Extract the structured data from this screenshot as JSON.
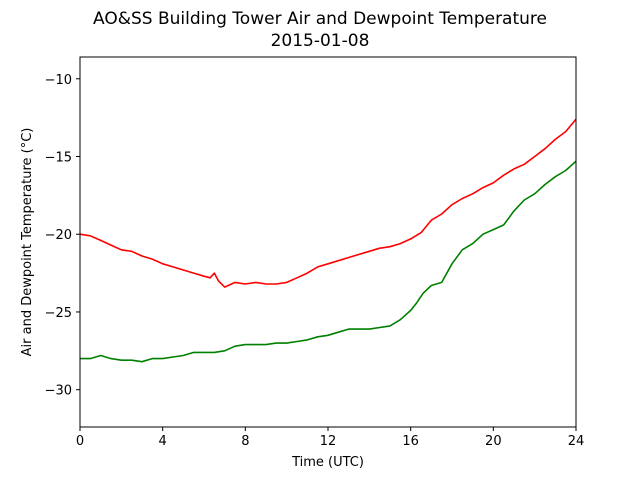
{
  "chart_data": {
    "type": "line",
    "title": "AO&SS Building Tower Air and Dewpoint Temperature",
    "subtitle": "2015-01-08",
    "xlabel": "Time (UTC)",
    "ylabel": "Air and Dewpoint Temperature (°C)",
    "xlim": [
      0,
      24
    ],
    "ylim": [
      -32.4,
      -8.6
    ],
    "xticks": [
      0,
      4,
      8,
      12,
      16,
      20,
      24
    ],
    "yticks": [
      -30,
      -25,
      -20,
      -15,
      -10
    ],
    "ytick_labels": [
      "−30",
      "−25",
      "−20",
      "−15",
      "−10"
    ],
    "grid": false,
    "series": [
      {
        "color": "#ff0000",
        "x": [
          0,
          0.5,
          1,
          1.5,
          2,
          2.5,
          3,
          3.5,
          4,
          4.5,
          5,
          5.5,
          6,
          6.3,
          6.5,
          6.7,
          7,
          7.5,
          8,
          8.5,
          9,
          9.5,
          10,
          10.5,
          11,
          11.5,
          12,
          12.5,
          13,
          13.5,
          14,
          14.5,
          15,
          15.5,
          16,
          16.5,
          17,
          17.5,
          18,
          18.5,
          19,
          19.5,
          20,
          20.5,
          21,
          21.5,
          22,
          22.5,
          23,
          23.5,
          24
        ],
        "y": [
          -20.0,
          -20.1,
          -20.4,
          -20.7,
          -21.0,
          -21.1,
          -21.4,
          -21.6,
          -21.9,
          -22.1,
          -22.3,
          -22.5,
          -22.7,
          -22.8,
          -22.5,
          -23.0,
          -23.4,
          -23.1,
          -23.2,
          -23.1,
          -23.2,
          -23.2,
          -23.1,
          -22.8,
          -22.5,
          -22.1,
          -21.9,
          -21.7,
          -21.5,
          -21.3,
          -21.1,
          -20.9,
          -20.8,
          -20.6,
          -20.3,
          -19.9,
          -19.1,
          -18.7,
          -18.1,
          -17.7,
          -17.4,
          -17.0,
          -16.7,
          -16.2,
          -15.8,
          -15.5,
          -15.0,
          -14.5,
          -13.9,
          -13.4,
          -12.6
        ]
      },
      {
        "color": "#008000",
        "x": [
          0,
          0.5,
          1,
          1.5,
          2,
          2.5,
          3,
          3.5,
          4,
          4.5,
          5,
          5.5,
          6,
          6.5,
          7,
          7.5,
          8,
          8.5,
          9,
          9.5,
          10,
          10.5,
          11,
          11.5,
          12,
          12.5,
          13,
          13.5,
          14,
          14.5,
          15,
          15.5,
          16,
          16.3,
          16.6,
          17,
          17.5,
          18,
          18.5,
          19,
          19.5,
          20,
          20.5,
          21,
          21.5,
          22,
          22.5,
          23,
          23.5,
          24
        ],
        "y": [
          -28.0,
          -28.0,
          -27.8,
          -28.0,
          -28.1,
          -28.1,
          -28.2,
          -28.0,
          -28.0,
          -27.9,
          -27.8,
          -27.6,
          -27.6,
          -27.6,
          -27.5,
          -27.2,
          -27.1,
          -27.1,
          -27.1,
          -27.0,
          -27.0,
          -26.9,
          -26.8,
          -26.6,
          -26.5,
          -26.3,
          -26.1,
          -26.1,
          -26.1,
          -26.0,
          -25.9,
          -25.5,
          -24.9,
          -24.4,
          -23.8,
          -23.3,
          -23.1,
          -21.9,
          -21.0,
          -20.6,
          -20.0,
          -19.7,
          -19.4,
          -18.5,
          -17.8,
          -17.4,
          -16.8,
          -16.3,
          -15.9,
          -15.3
        ]
      }
    ]
  }
}
